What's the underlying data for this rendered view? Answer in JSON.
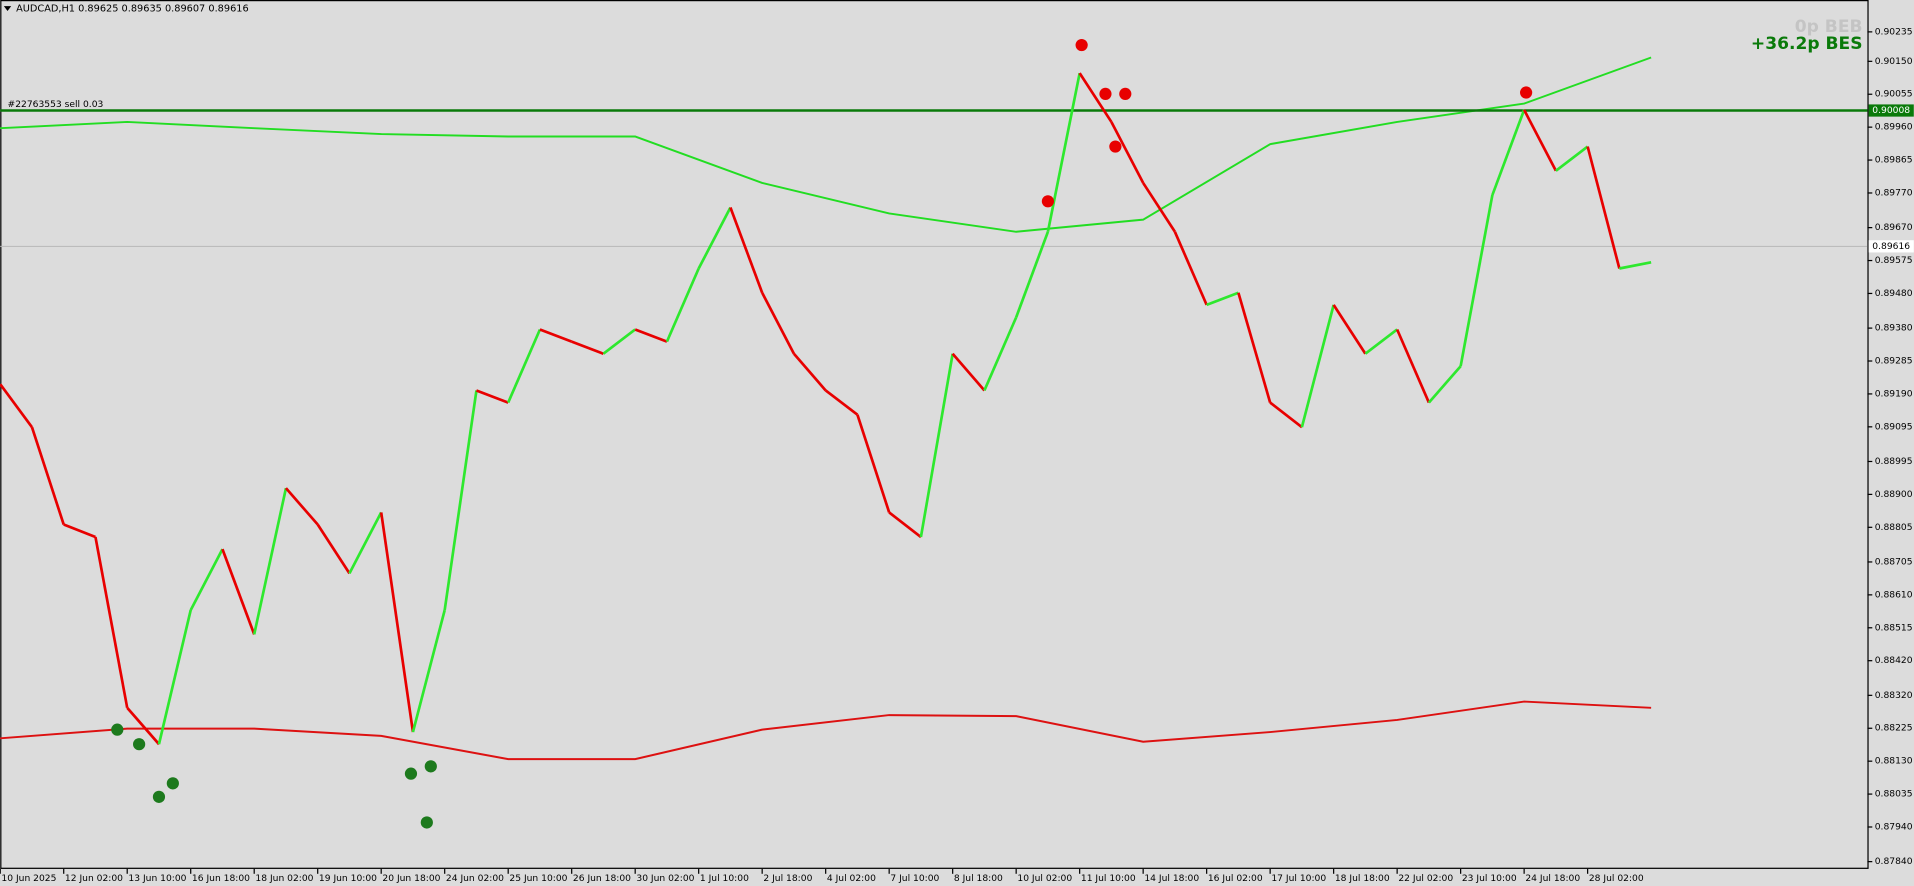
{
  "chart_data": {
    "type": "line",
    "title": "AUDCAD,H1  0.89625 0.89635 0.89607 0.89616",
    "x": [
      0,
      16,
      32,
      48,
      64,
      80,
      96,
      112,
      128,
      144,
      160,
      176,
      192,
      208,
      224,
      240,
      256,
      272,
      288,
      304,
      320,
      336,
      352,
      368,
      384,
      400,
      416,
      432,
      448,
      464,
      480,
      496,
      512,
      528,
      544,
      560,
      576,
      592,
      608,
      624,
      640,
      656,
      672,
      688,
      704,
      720,
      736,
      752,
      768,
      784,
      800,
      816,
      832
    ],
    "series": [
      {
        "up_color": "#2ee82e",
        "down_color": "#e80000",
        "values": [
          0.89218,
          0.89094,
          0.88813,
          0.88777,
          0.88284,
          0.88179,
          0.88566,
          0.88742,
          0.88496,
          0.88918,
          0.88813,
          0.88672,
          0.88848,
          0.88214,
          0.88566,
          0.892,
          0.89165,
          0.89376,
          0.89341,
          0.89306,
          0.89376,
          0.89341,
          0.89552,
          0.89728,
          0.89482,
          0.89306,
          0.892,
          0.8913,
          0.88848,
          0.88777,
          0.89306,
          0.892,
          0.89411,
          0.89658,
          0.90116,
          0.89975,
          0.89799,
          0.89658,
          0.89447,
          0.89482,
          0.89165,
          0.89094,
          0.89447,
          0.89306,
          0.89376,
          0.89165,
          0.8927,
          0.89764,
          0.9001,
          0.89834,
          0.89904,
          0.89552,
          0.8957
        ]
      }
    ],
    "bands": [
      {
        "color": "#22dd22",
        "x": [
          0,
          64,
          128,
          192,
          256,
          320,
          384,
          448,
          512,
          576,
          640,
          704,
          768,
          832
        ],
        "values": [
          0.89957,
          0.89975,
          0.89957,
          0.8994,
          0.89933,
          0.89933,
          0.89799,
          0.89711,
          0.89658,
          0.89693,
          0.89911,
          0.89975,
          0.90028,
          0.90161
        ]
      },
      {
        "color": "#dd1111",
        "x": [
          0,
          64,
          128,
          192,
          256,
          320,
          384,
          448,
          512,
          576,
          640,
          704,
          768,
          832
        ],
        "values": [
          0.88196,
          0.88224,
          0.88224,
          0.88203,
          0.88136,
          0.88136,
          0.88221,
          0.88263,
          0.8826,
          0.88186,
          0.88214,
          0.88249,
          0.88302,
          0.88284
        ]
      }
    ],
    "markers": [
      {
        "color": "#e80000",
        "x": [
          528,
          545,
          557,
          567,
          562,
          769
        ],
        "values": [
          0.89746,
          0.90197,
          0.90056,
          0.90056,
          0.89904,
          0.9006
        ]
      },
      {
        "color": "#1d7a1d",
        "x": [
          59,
          70,
          80,
          87,
          207,
          217,
          215
        ],
        "values": [
          0.88221,
          0.88179,
          0.88027,
          0.88066,
          0.88094,
          0.88115,
          0.87953
        ]
      }
    ],
    "order_line": {
      "label": "#22763553 sell 0.03",
      "price": 0.90008,
      "color": "#0a7a0a"
    },
    "current_price": 0.89616,
    "info_top": "0p BEB",
    "info_profit": "+36.2p BES",
    "xlim": [
      0,
      941
    ],
    "ylim": [
      0.87819,
      0.90327
    ],
    "yticks": [
      {
        "value": 0.90235,
        "label": "0.90235"
      },
      {
        "value": 0.9015,
        "label": "0.90150"
      },
      {
        "value": 0.90055,
        "label": "0.90055"
      },
      {
        "value": 0.8996,
        "label": "0.89960"
      },
      {
        "value": 0.89865,
        "label": "0.89865"
      },
      {
        "value": 0.8977,
        "label": "0.89770"
      },
      {
        "value": 0.8967,
        "label": "0.89670"
      },
      {
        "value": 0.89575,
        "label": "0.89575"
      },
      {
        "value": 0.8948,
        "label": "0.89480"
      },
      {
        "value": 0.8938,
        "label": "0.89380"
      },
      {
        "value": 0.89285,
        "label": "0.89285"
      },
      {
        "value": 0.8919,
        "label": "0.89190"
      },
      {
        "value": 0.89095,
        "label": "0.89095"
      },
      {
        "value": 0.88995,
        "label": "0.88995"
      },
      {
        "value": 0.889,
        "label": "0.88900"
      },
      {
        "value": 0.88805,
        "label": "0.88805"
      },
      {
        "value": 0.88705,
        "label": "0.88705"
      },
      {
        "value": 0.8861,
        "label": "0.88610"
      },
      {
        "value": 0.88515,
        "label": "0.88515"
      },
      {
        "value": 0.8842,
        "label": "0.88420"
      },
      {
        "value": 0.8832,
        "label": "0.88320"
      },
      {
        "value": 0.88225,
        "label": "0.88225"
      },
      {
        "value": 0.8813,
        "label": "0.88130"
      },
      {
        "value": 0.88035,
        "label": "0.88035"
      },
      {
        "value": 0.8794,
        "label": "0.87940"
      },
      {
        "value": 0.8784,
        "label": "0.87840"
      }
    ],
    "xticks": [
      {
        "value": 0,
        "label": "10 Jun 2025"
      },
      {
        "value": 32,
        "label": "12 Jun 02:00"
      },
      {
        "value": 64,
        "label": "13 Jun 10:00"
      },
      {
        "value": 96,
        "label": "16 Jun 18:00"
      },
      {
        "value": 128,
        "label": "18 Jun 02:00"
      },
      {
        "value": 160,
        "label": "19 Jun 10:00"
      },
      {
        "value": 192,
        "label": "20 Jun 18:00"
      },
      {
        "value": 224,
        "label": "24 Jun 02:00"
      },
      {
        "value": 256,
        "label": "25 Jun 10:00"
      },
      {
        "value": 288,
        "label": "26 Jun 18:00"
      },
      {
        "value": 320,
        "label": "30 Jun 02:00"
      },
      {
        "value": 352,
        "label": "1 Jul 10:00"
      },
      {
        "value": 384,
        "label": "2 Jul 18:00"
      },
      {
        "value": 416,
        "label": "4 Jul 02:00"
      },
      {
        "value": 448,
        "label": "7 Jul 10:00"
      },
      {
        "value": 480,
        "label": "8 Jul 18:00"
      },
      {
        "value": 512,
        "label": "10 Jul 02:00"
      },
      {
        "value": 544,
        "label": "11 Jul 10:00"
      },
      {
        "value": 576,
        "label": "14 Jul 18:00"
      },
      {
        "value": 608,
        "label": "16 Jul 02:00"
      },
      {
        "value": 640,
        "label": "17 Jul 10:00"
      },
      {
        "value": 672,
        "label": "18 Jul 18:00"
      },
      {
        "value": 704,
        "label": "22 Jul 02:00"
      },
      {
        "value": 736,
        "label": "23 Jul 10:00"
      },
      {
        "value": 768,
        "label": "24 Jul 18:00"
      },
      {
        "value": 800,
        "label": "28 Jul 02:00"
      }
    ]
  }
}
